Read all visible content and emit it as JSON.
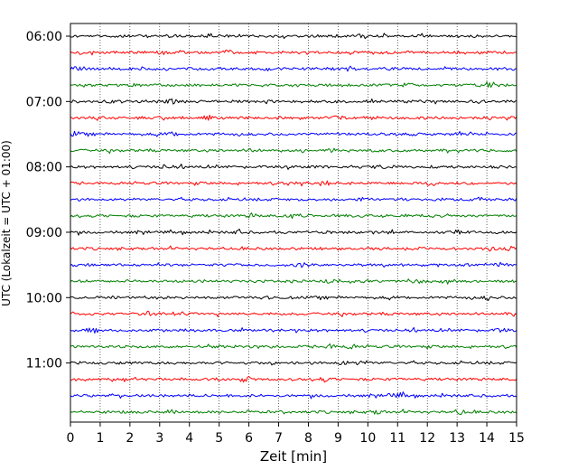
{
  "chart_data": {
    "type": "line",
    "title": "",
    "xlabel": "Zeit  [min]",
    "ylabel": "UTC (Lokalzeit = UTC + 01:00)",
    "xlim": [
      0,
      15
    ],
    "x_ticks": [
      "0",
      "1",
      "2",
      "3",
      "4",
      "5",
      "6",
      "7",
      "8",
      "9",
      "10",
      "11",
      "12",
      "13",
      "14",
      "15"
    ],
    "y_ticks": [
      "06:00",
      "07:00",
      "08:00",
      "09:00",
      "10:00",
      "11:00"
    ],
    "traces_per_hour": 4,
    "minutes_per_trace": 15,
    "trace_count": 24,
    "trace_colors": [
      "#000000",
      "#ff0000",
      "#0000ff",
      "#008000"
    ],
    "grid": "vertical dotted lines at each minute",
    "signal": "continuous seismogram traces with low-amplitude noise (helicorder plot)"
  }
}
